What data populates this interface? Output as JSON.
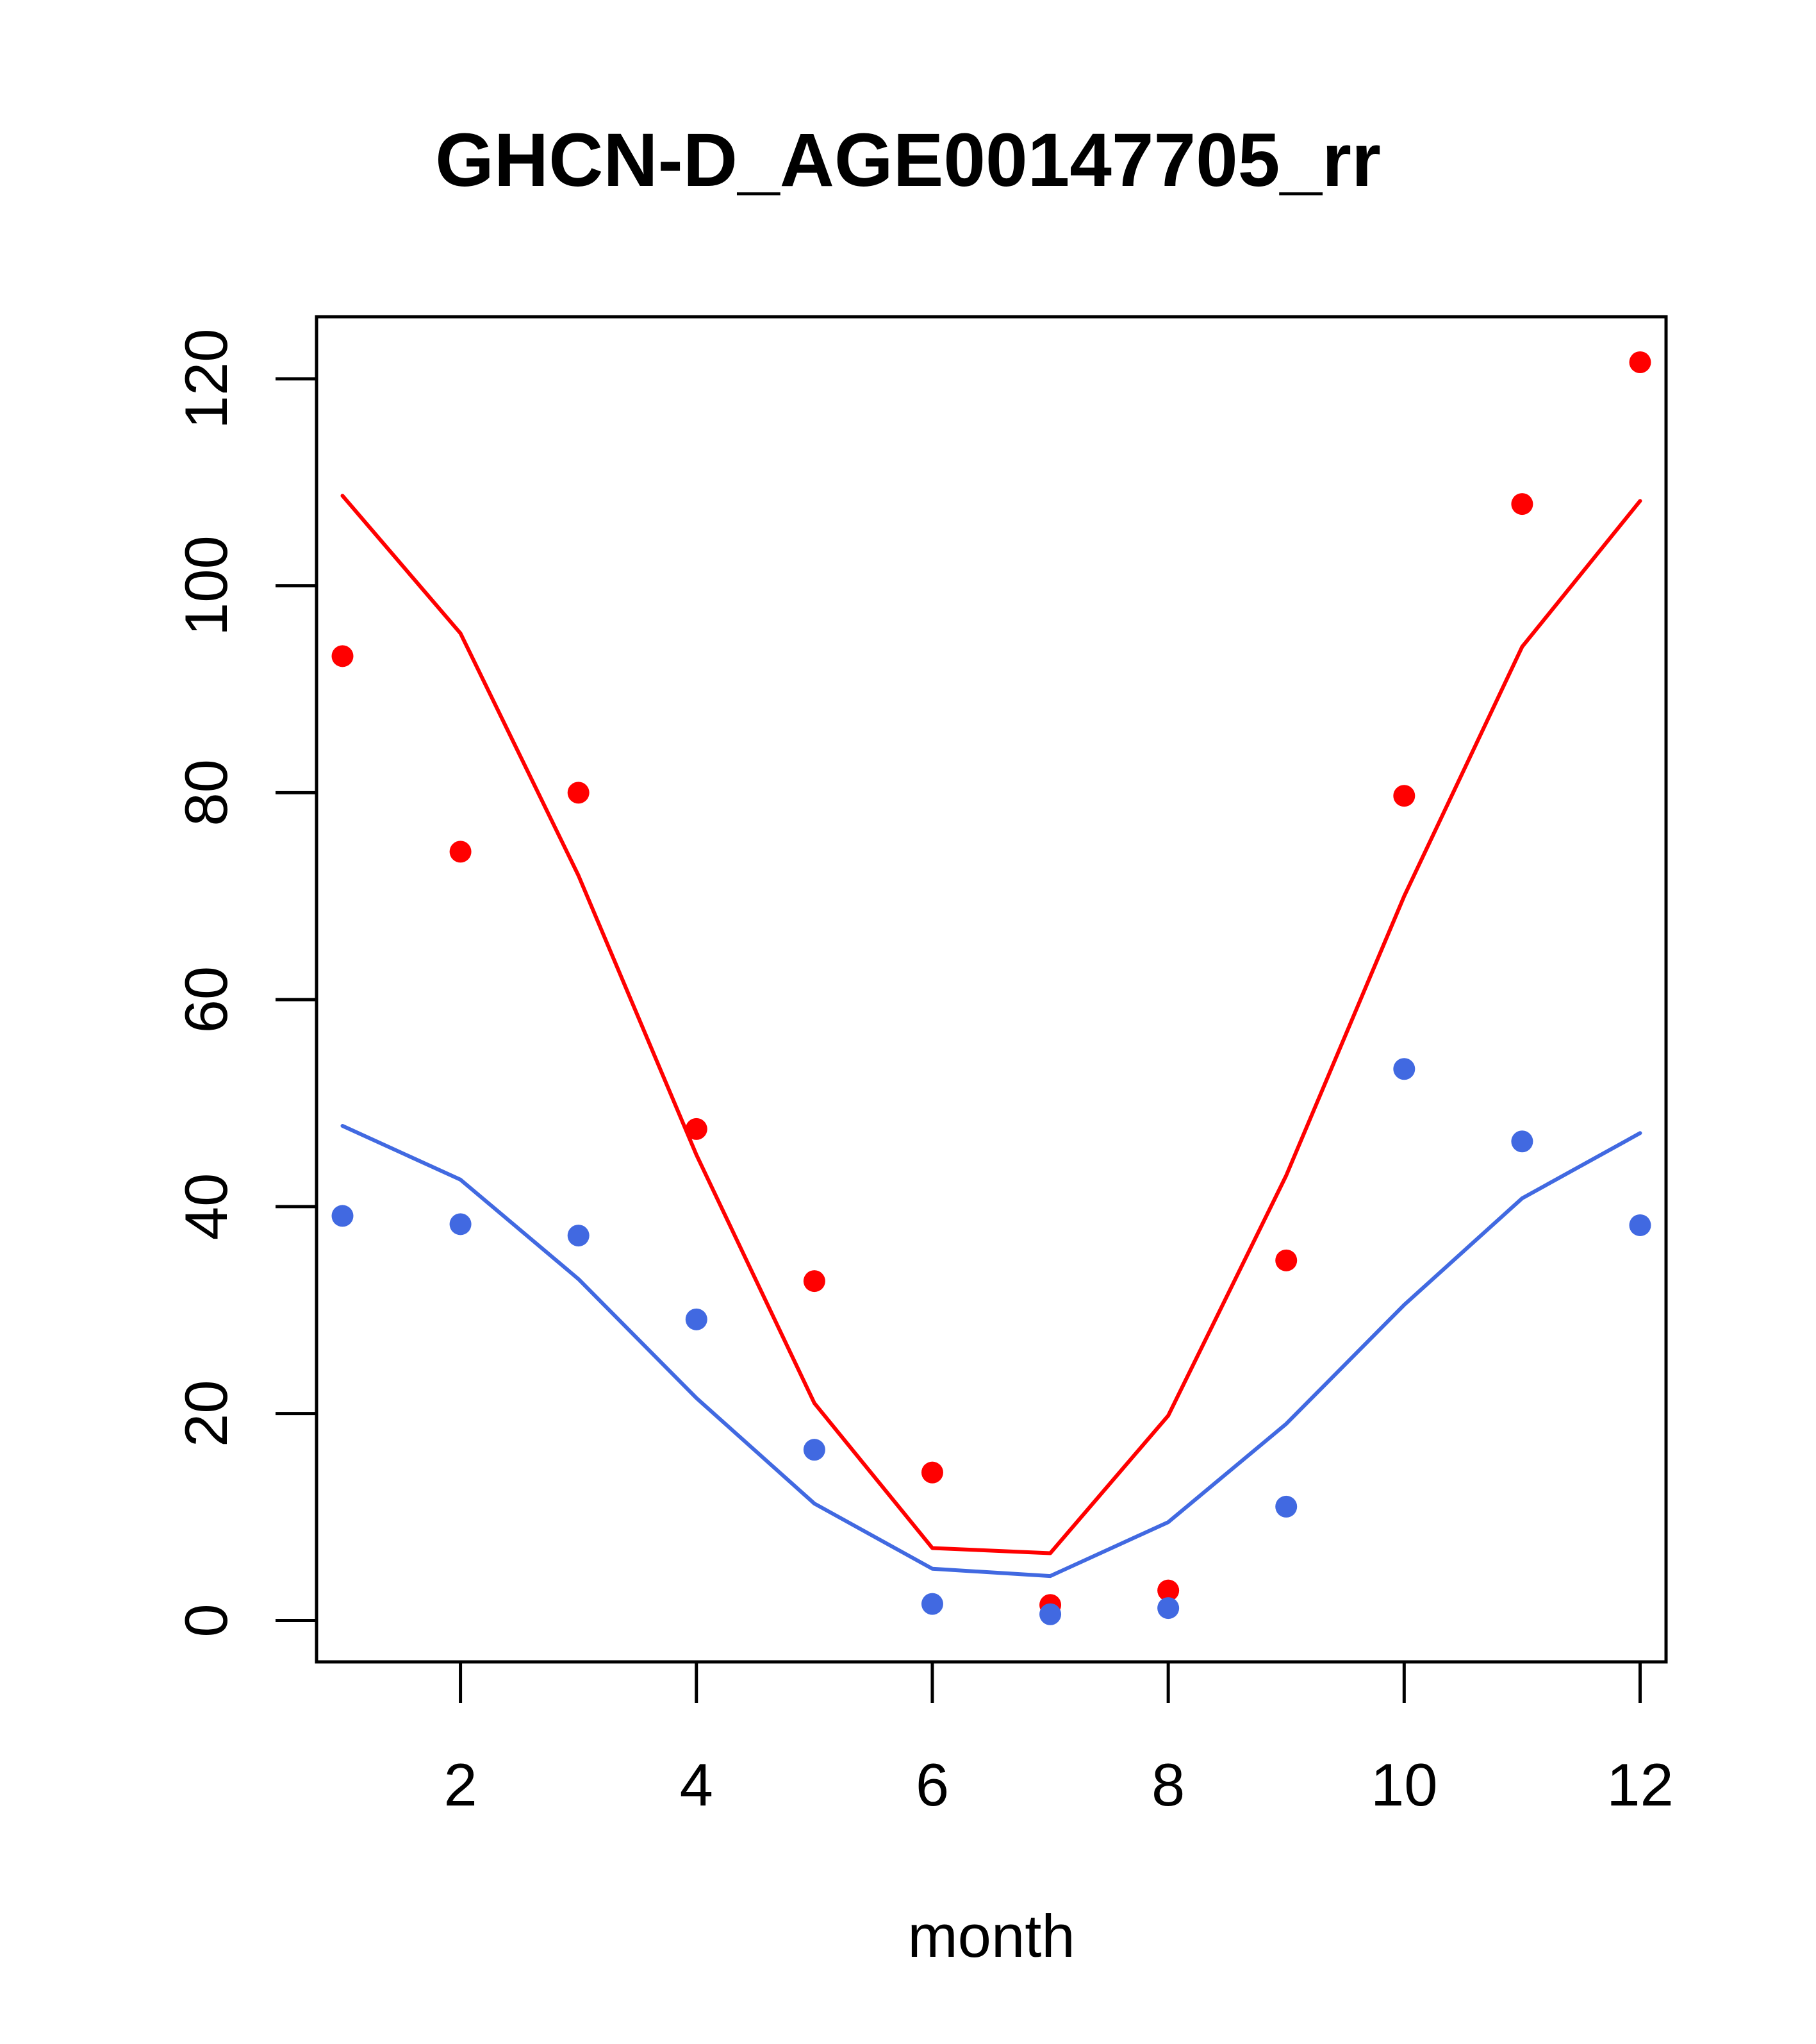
{
  "chart_data": {
    "type": "line",
    "title": "GHCN-D_AGE00147705_rr",
    "xlabel": "month",
    "ylabel": "",
    "xlim": [
      0.78,
      12.22
    ],
    "ylim": [
      -4,
      126
    ],
    "x_ticks": [
      2,
      4,
      6,
      8,
      10,
      12
    ],
    "y_ticks": [
      0,
      20,
      40,
      60,
      80,
      100,
      120
    ],
    "grid": false,
    "legend": "none",
    "series": [
      {
        "kind": "points",
        "color": "#ff0000",
        "x": [
          1,
          2,
          3,
          4,
          5,
          6,
          7,
          8,
          9,
          10,
          11,
          12
        ],
        "y": [
          93.2,
          74.3,
          80.0,
          47.5,
          32.8,
          14.3,
          1.5,
          2.9,
          34.8,
          79.7,
          107.9,
          121.6
        ]
      },
      {
        "kind": "line",
        "color": "#ff0000",
        "x": [
          1,
          2,
          3,
          4,
          5,
          6,
          7,
          8,
          9,
          10,
          11,
          12
        ],
        "y": [
          108.7,
          95.4,
          72.0,
          45.0,
          21.0,
          7.0,
          6.5,
          19.8,
          43.0,
          70.0,
          94.1,
          108.2
        ]
      },
      {
        "kind": "points",
        "color": "#4169e1",
        "x": [
          1,
          2,
          3,
          4,
          5,
          6,
          7,
          8,
          9,
          10,
          11,
          12
        ],
        "y": [
          39.1,
          38.3,
          37.2,
          29.1,
          16.5,
          1.6,
          0.6,
          1.2,
          11.0,
          53.3,
          46.3,
          38.2
        ]
      },
      {
        "kind": "line",
        "color": "#4169e1",
        "x": [
          1,
          2,
          3,
          4,
          5,
          6,
          7,
          8,
          9,
          10,
          11,
          12
        ],
        "y": [
          47.8,
          42.6,
          33.0,
          21.5,
          11.3,
          5.0,
          4.3,
          9.5,
          19.0,
          30.5,
          40.8,
          47.1
        ]
      }
    ]
  }
}
